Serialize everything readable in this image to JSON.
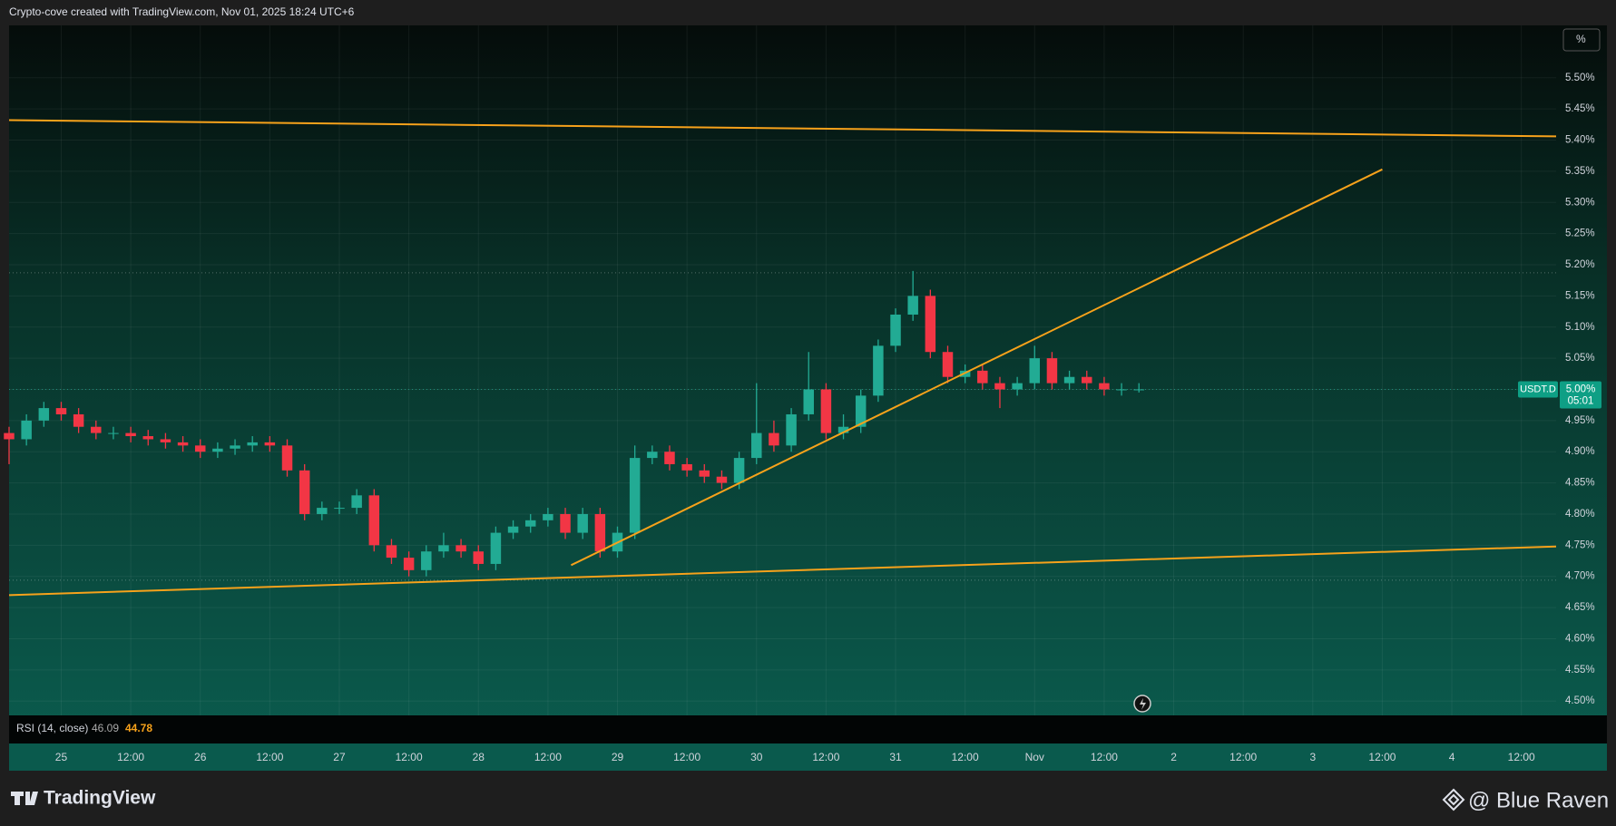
{
  "header": "Crypto-cove created with TradingView.com, Nov 01, 2025 18:24 UTC+6",
  "footer": {
    "brand": "TradingView",
    "watermark": "@ Blue Raven"
  },
  "scale_button": "%",
  "rsi": {
    "label": "RSI (14, close)",
    "value_1": "46.09",
    "value_2": "44.78"
  },
  "chart_data": {
    "type": "candlestick",
    "grid": true,
    "symbol": "USDT.D",
    "countdown": "05:01",
    "last_price": {
      "value": 5.0,
      "label": "5.00%"
    },
    "colors": {
      "up": "#22ab94",
      "down": "#f23645",
      "drawing": "#f7a21b"
    },
    "x": [
      -9,
      -6,
      -3,
      0,
      3,
      6,
      9,
      12,
      15,
      18,
      21,
      24,
      27,
      30,
      33,
      36,
      39,
      42,
      45,
      48,
      51,
      54,
      57,
      60,
      63,
      66,
      69,
      72,
      75,
      78,
      81,
      84,
      87,
      90,
      93,
      96,
      99,
      102,
      105,
      108,
      111,
      114,
      117,
      120,
      123,
      126,
      129,
      132,
      135,
      138,
      141,
      144,
      147,
      150,
      153,
      156,
      159,
      162,
      165,
      168,
      171,
      174,
      177,
      180,
      183,
      186
    ],
    "open": [
      4.93,
      4.92,
      4.95,
      4.97,
      4.96,
      4.94,
      4.93,
      4.93,
      4.925,
      4.92,
      4.915,
      4.91,
      4.9,
      4.905,
      4.91,
      4.915,
      4.91,
      4.87,
      4.8,
      4.81,
      4.81,
      4.83,
      4.75,
      4.73,
      4.71,
      4.74,
      4.75,
      4.74,
      4.72,
      4.77,
      4.78,
      4.79,
      4.8,
      4.77,
      4.8,
      4.74,
      4.77,
      4.89,
      4.9,
      4.88,
      4.87,
      4.86,
      4.85,
      4.89,
      4.93,
      4.91,
      4.96,
      5.0,
      4.93,
      4.94,
      4.99,
      5.07,
      5.12,
      5.15,
      5.06,
      5.02,
      5.03,
      5.01,
      5.0,
      5.01,
      5.05,
      5.01,
      5.02,
      5.01,
      5.0,
      5.0
    ],
    "high": [
      4.94,
      4.96,
      4.98,
      4.98,
      4.97,
      4.95,
      4.94,
      4.94,
      4.935,
      4.93,
      4.925,
      4.92,
      4.915,
      4.92,
      4.925,
      4.925,
      4.92,
      4.88,
      4.82,
      4.82,
      4.84,
      4.84,
      4.76,
      4.74,
      4.75,
      4.77,
      4.76,
      4.75,
      4.78,
      4.79,
      4.8,
      4.81,
      4.81,
      4.81,
      4.81,
      4.78,
      4.91,
      4.91,
      4.91,
      4.89,
      4.88,
      4.87,
      4.9,
      5.01,
      4.95,
      4.97,
      5.06,
      5.01,
      4.96,
      5.0,
      5.08,
      5.13,
      5.19,
      5.16,
      5.07,
      5.04,
      5.04,
      5.02,
      5.02,
      5.07,
      5.06,
      5.03,
      5.03,
      5.02,
      5.01,
      5.01
    ],
    "low": [
      4.88,
      4.91,
      4.94,
      4.95,
      4.93,
      4.92,
      4.92,
      4.915,
      4.91,
      4.905,
      4.9,
      4.89,
      4.89,
      4.895,
      4.9,
      4.9,
      4.86,
      4.79,
      4.79,
      4.8,
      4.8,
      4.74,
      4.72,
      4.7,
      4.7,
      4.73,
      4.73,
      4.71,
      4.71,
      4.76,
      4.77,
      4.78,
      4.76,
      4.76,
      4.73,
      4.73,
      4.76,
      4.88,
      4.87,
      4.86,
      4.85,
      4.84,
      4.84,
      4.88,
      4.9,
      4.9,
      4.95,
      4.92,
      4.92,
      4.93,
      4.98,
      5.06,
      5.11,
      5.05,
      5.01,
      5.01,
      5.0,
      4.97,
      4.99,
      5.0,
      5.0,
      5.0,
      5.0,
      4.99,
      4.99,
      4.995
    ],
    "close": [
      4.92,
      4.95,
      4.97,
      4.96,
      4.94,
      4.93,
      4.93,
      4.925,
      4.92,
      4.915,
      4.91,
      4.9,
      4.905,
      4.91,
      4.915,
      4.91,
      4.87,
      4.8,
      4.81,
      4.81,
      4.83,
      4.75,
      4.73,
      4.71,
      4.74,
      4.75,
      4.74,
      4.72,
      4.77,
      4.78,
      4.79,
      4.8,
      4.77,
      4.8,
      4.74,
      4.77,
      4.89,
      4.9,
      4.88,
      4.87,
      4.86,
      4.85,
      4.89,
      4.93,
      4.91,
      4.96,
      5.0,
      4.93,
      4.94,
      4.99,
      5.07,
      5.12,
      5.15,
      5.06,
      5.02,
      5.03,
      5.01,
      5.0,
      5.01,
      5.05,
      5.01,
      5.02,
      5.01,
      5.0,
      5.0,
      5.0
    ],
    "drawings": [
      {
        "x": [
          -9,
          258
        ],
        "y": [
          5.432,
          5.406
        ]
      },
      {
        "x": [
          -9,
          258
        ],
        "y": [
          4.67,
          4.748
        ]
      },
      {
        "x": [
          88,
          228
        ],
        "y": [
          4.718,
          5.353
        ]
      }
    ],
    "level_lines": [
      5.187,
      4.694
    ],
    "xlim": [
      -9,
      258
    ],
    "ylim": [
      4.477,
      5.584
    ],
    "xticks": [
      {
        "value": 0,
        "label": "25"
      },
      {
        "value": 12,
        "label": "12:00"
      },
      {
        "value": 24,
        "label": "26"
      },
      {
        "value": 36,
        "label": "12:00"
      },
      {
        "value": 48,
        "label": "27"
      },
      {
        "value": 60,
        "label": "12:00"
      },
      {
        "value": 72,
        "label": "28"
      },
      {
        "value": 84,
        "label": "12:00"
      },
      {
        "value": 96,
        "label": "29"
      },
      {
        "value": 108,
        "label": "12:00"
      },
      {
        "value": 120,
        "label": "30"
      },
      {
        "value": 132,
        "label": "12:00"
      },
      {
        "value": 144,
        "label": "31"
      },
      {
        "value": 156,
        "label": "12:00"
      },
      {
        "value": 168,
        "label": "Nov"
      },
      {
        "value": 180,
        "label": "12:00"
      },
      {
        "value": 192,
        "label": "2"
      },
      {
        "value": 204,
        "label": "12:00"
      },
      {
        "value": 216,
        "label": "3"
      },
      {
        "value": 228,
        "label": "12:00"
      },
      {
        "value": 240,
        "label": "4"
      },
      {
        "value": 252,
        "label": "12:00"
      }
    ],
    "yticks": [
      {
        "value": 4.5,
        "label": "4.50%"
      },
      {
        "value": 4.55,
        "label": "4.55%"
      },
      {
        "value": 4.6,
        "label": "4.60%"
      },
      {
        "value": 4.65,
        "label": "4.65%"
      },
      {
        "value": 4.7,
        "label": "4.70%"
      },
      {
        "value": 4.75,
        "label": "4.75%"
      },
      {
        "value": 4.8,
        "label": "4.80%"
      },
      {
        "value": 4.85,
        "label": "4.85%"
      },
      {
        "value": 4.9,
        "label": "4.90%"
      },
      {
        "value": 4.95,
        "label": "4.95%"
      },
      {
        "value": 5.0,
        "label": "5.00%"
      },
      {
        "value": 5.05,
        "label": "5.05%"
      },
      {
        "value": 5.1,
        "label": "5.10%"
      },
      {
        "value": 5.15,
        "label": "5.15%"
      },
      {
        "value": 5.2,
        "label": "5.20%"
      },
      {
        "value": 5.25,
        "label": "5.25%"
      },
      {
        "value": 5.3,
        "label": "5.30%"
      },
      {
        "value": 5.35,
        "label": "5.35%"
      },
      {
        "value": 5.4,
        "label": "5.40%"
      },
      {
        "value": 5.45,
        "label": "5.45%"
      },
      {
        "value": 5.5,
        "label": "5.50%"
      }
    ]
  }
}
